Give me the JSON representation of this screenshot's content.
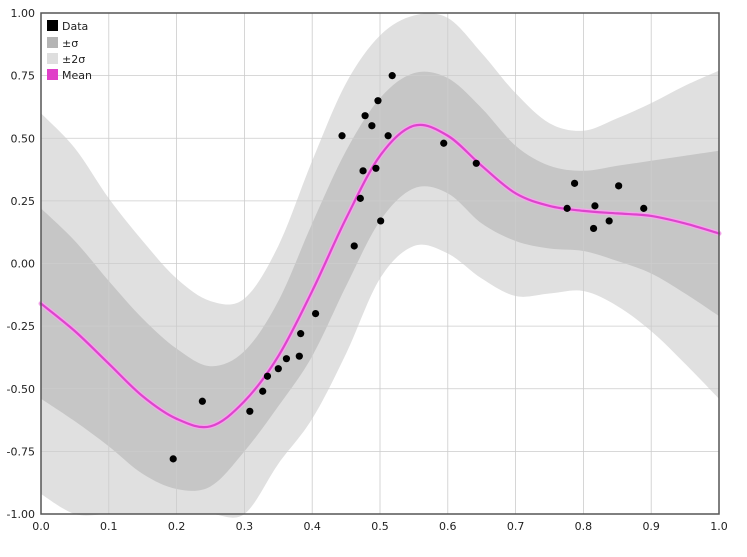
{
  "chart_data": {
    "type": "line",
    "title": "",
    "xlabel": "",
    "ylabel": "",
    "xlim": [
      0.0,
      1.0
    ],
    "ylim": [
      -1.0,
      1.0
    ],
    "grid": true,
    "legend_position": "top-left",
    "x_ticks": [
      "0.0",
      "0.1",
      "0.2",
      "0.3",
      "0.4",
      "0.5",
      "0.6",
      "0.7",
      "0.8",
      "0.9",
      "1.0"
    ],
    "y_ticks": [
      "-1.00",
      "-0.75",
      "-0.50",
      "-0.25",
      "0.00",
      "0.25",
      "0.50",
      "0.75",
      "1.00"
    ],
    "x_tick_values": [
      0.0,
      0.1,
      0.2,
      0.3,
      0.4,
      0.5,
      0.6,
      0.7,
      0.8,
      0.9,
      1.0
    ],
    "y_tick_values": [
      -1.0,
      -0.75,
      -0.5,
      -0.25,
      0.0,
      0.25,
      0.5,
      0.75,
      1.0
    ],
    "legend": [
      {
        "label": "Data",
        "color": "#000000"
      },
      {
        "label": "±σ",
        "color": "#b4b4b4"
      },
      {
        "label": "±2σ",
        "color": "#dedede"
      },
      {
        "label": "Mean",
        "color": "#e040c8"
      }
    ],
    "colors": {
      "data": "#000000",
      "band1": "#c6c6c6",
      "band2": "#e0e0e0",
      "mean": "#dd44cc",
      "grid": "#cccccc",
      "frame": "#555555"
    },
    "series": [
      {
        "name": "Mean",
        "x": [
          0.0,
          0.05,
          0.1,
          0.15,
          0.2,
          0.25,
          0.3,
          0.35,
          0.4,
          0.45,
          0.5,
          0.55,
          0.6,
          0.65,
          0.7,
          0.75,
          0.8,
          0.85,
          0.9,
          0.95,
          1.0
        ],
        "y": [
          -0.16,
          -0.27,
          -0.4,
          -0.53,
          -0.62,
          -0.65,
          -0.55,
          -0.37,
          -0.11,
          0.18,
          0.43,
          0.55,
          0.51,
          0.39,
          0.28,
          0.23,
          0.21,
          0.2,
          0.19,
          0.16,
          0.12
        ]
      },
      {
        "name": "±σ",
        "x": [
          0.0,
          0.05,
          0.1,
          0.15,
          0.2,
          0.25,
          0.3,
          0.35,
          0.4,
          0.45,
          0.5,
          0.55,
          0.6,
          0.65,
          0.7,
          0.75,
          0.8,
          0.85,
          0.9,
          0.95,
          1.0
        ],
        "upper": [
          0.22,
          0.09,
          -0.07,
          -0.22,
          -0.34,
          -0.41,
          -0.35,
          -0.15,
          0.16,
          0.45,
          0.66,
          0.76,
          0.74,
          0.62,
          0.47,
          0.39,
          0.37,
          0.39,
          0.41,
          0.43,
          0.45
        ],
        "lower": [
          -0.54,
          -0.63,
          -0.73,
          -0.84,
          -0.9,
          -0.89,
          -0.75,
          -0.57,
          -0.37,
          -0.09,
          0.17,
          0.3,
          0.28,
          0.16,
          0.09,
          0.06,
          0.05,
          0.01,
          -0.04,
          -0.12,
          -0.21
        ]
      },
      {
        "name": "±2σ",
        "x": [
          0.0,
          0.05,
          0.1,
          0.15,
          0.2,
          0.25,
          0.3,
          0.35,
          0.4,
          0.45,
          0.5,
          0.55,
          0.6,
          0.65,
          0.7,
          0.75,
          0.8,
          0.85,
          0.9,
          0.95,
          1.0
        ],
        "upper": [
          0.6,
          0.46,
          0.26,
          0.09,
          -0.06,
          -0.15,
          -0.14,
          0.07,
          0.41,
          0.72,
          0.91,
          0.99,
          0.98,
          0.84,
          0.68,
          0.56,
          0.53,
          0.58,
          0.64,
          0.71,
          0.77
        ],
        "lower": [
          -0.92,
          -1.0,
          -1.0,
          -1.0,
          -1.0,
          -1.0,
          -1.0,
          -0.8,
          -0.62,
          -0.36,
          -0.06,
          0.07,
          0.04,
          -0.06,
          -0.13,
          -0.12,
          -0.11,
          -0.17,
          -0.27,
          -0.4,
          -0.54
        ]
      },
      {
        "name": "Data",
        "points": [
          [
            0.195,
            -0.78
          ],
          [
            0.238,
            -0.55
          ],
          [
            0.308,
            -0.59
          ],
          [
            0.327,
            -0.51
          ],
          [
            0.334,
            -0.45
          ],
          [
            0.35,
            -0.42
          ],
          [
            0.362,
            -0.38
          ],
          [
            0.381,
            -0.37
          ],
          [
            0.383,
            -0.28
          ],
          [
            0.405,
            -0.2
          ],
          [
            0.444,
            0.51
          ],
          [
            0.462,
            0.07
          ],
          [
            0.471,
            0.26
          ],
          [
            0.475,
            0.37
          ],
          [
            0.478,
            0.59
          ],
          [
            0.488,
            0.55
          ],
          [
            0.494,
            0.38
          ],
          [
            0.497,
            0.65
          ],
          [
            0.501,
            0.17
          ],
          [
            0.512,
            0.51
          ],
          [
            0.518,
            0.75
          ],
          [
            0.594,
            0.48
          ],
          [
            0.642,
            0.4
          ],
          [
            0.776,
            0.22
          ],
          [
            0.787,
            0.32
          ],
          [
            0.815,
            0.14
          ],
          [
            0.817,
            0.23
          ],
          [
            0.838,
            0.17
          ],
          [
            0.852,
            0.31
          ],
          [
            0.889,
            0.22
          ]
        ]
      }
    ]
  }
}
